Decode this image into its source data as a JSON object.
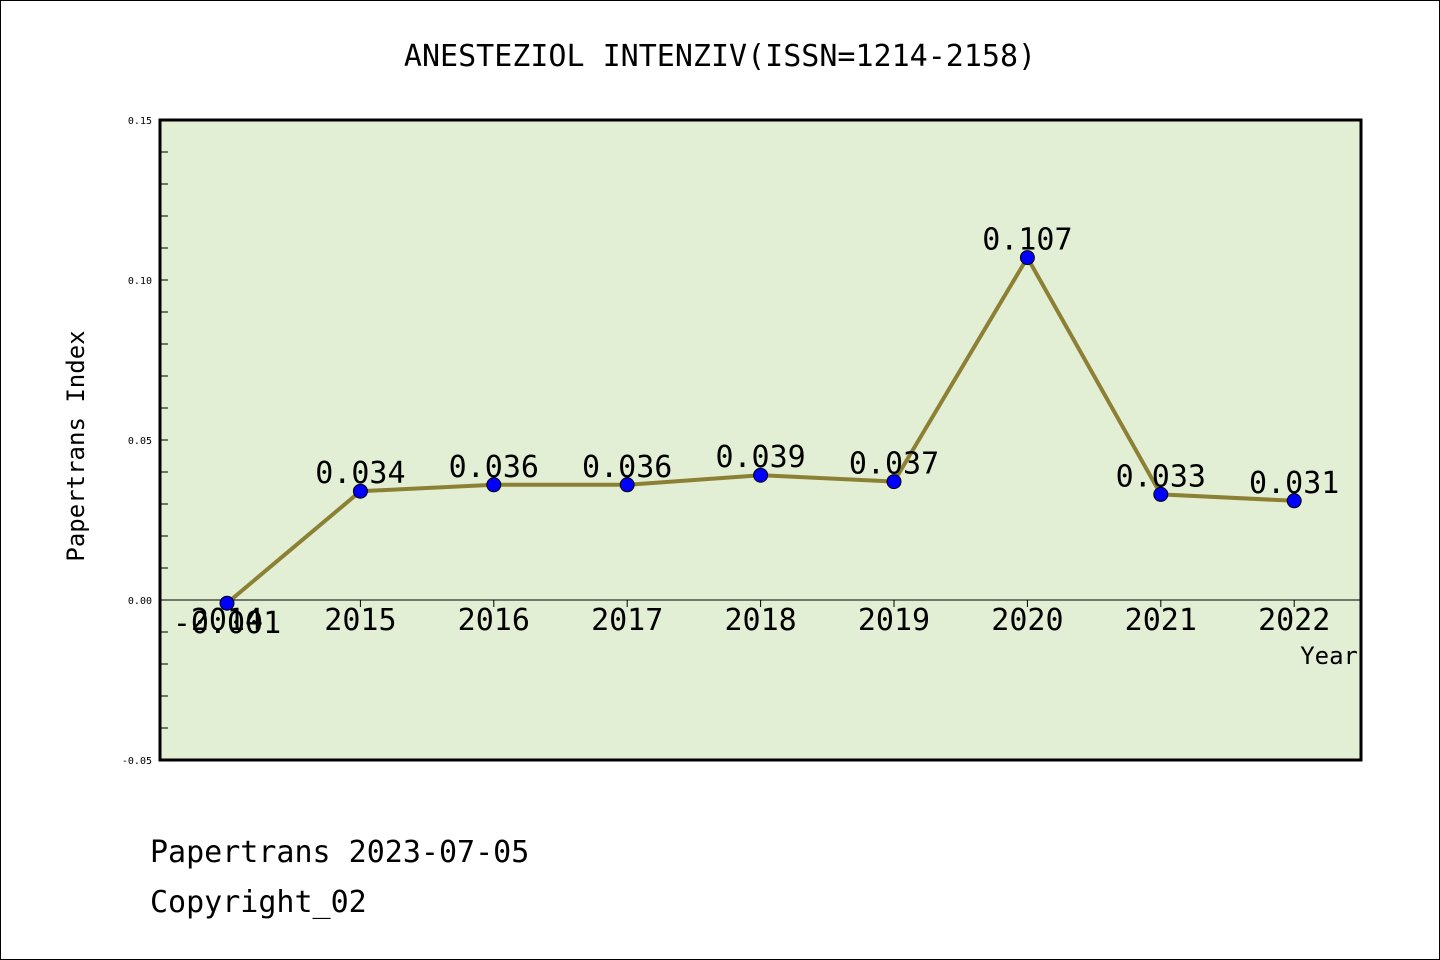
{
  "chart_data": {
    "type": "line",
    "title": "ANESTEZIOL INTENZIV(ISSN=1214-2158)",
    "xlabel": "Year",
    "ylabel": "Papertrans Index",
    "categories": [
      "2014",
      "2015",
      "2016",
      "2017",
      "2018",
      "2019",
      "2020",
      "2021",
      "2022"
    ],
    "values": [
      -0.001,
      0.034,
      0.036,
      0.036,
      0.039,
      0.037,
      0.107,
      0.033,
      0.031
    ],
    "data_labels": [
      "-0.001",
      "0.034",
      "0.036",
      "0.036",
      "0.039",
      "0.037",
      "0.107",
      "0.033",
      "0.031"
    ],
    "ylim": [
      -0.05,
      0.15
    ],
    "yticks": [
      "0.15",
      "0.10",
      "0.05",
      "0.00",
      "-0.05"
    ],
    "grid": false,
    "colors": {
      "plot_background": "#e2efd4",
      "line": "#8c8035",
      "marker": "#0000ff"
    }
  },
  "footer": {
    "line1": "Papertrans 2023-07-05",
    "line2": "Copyright_02"
  }
}
